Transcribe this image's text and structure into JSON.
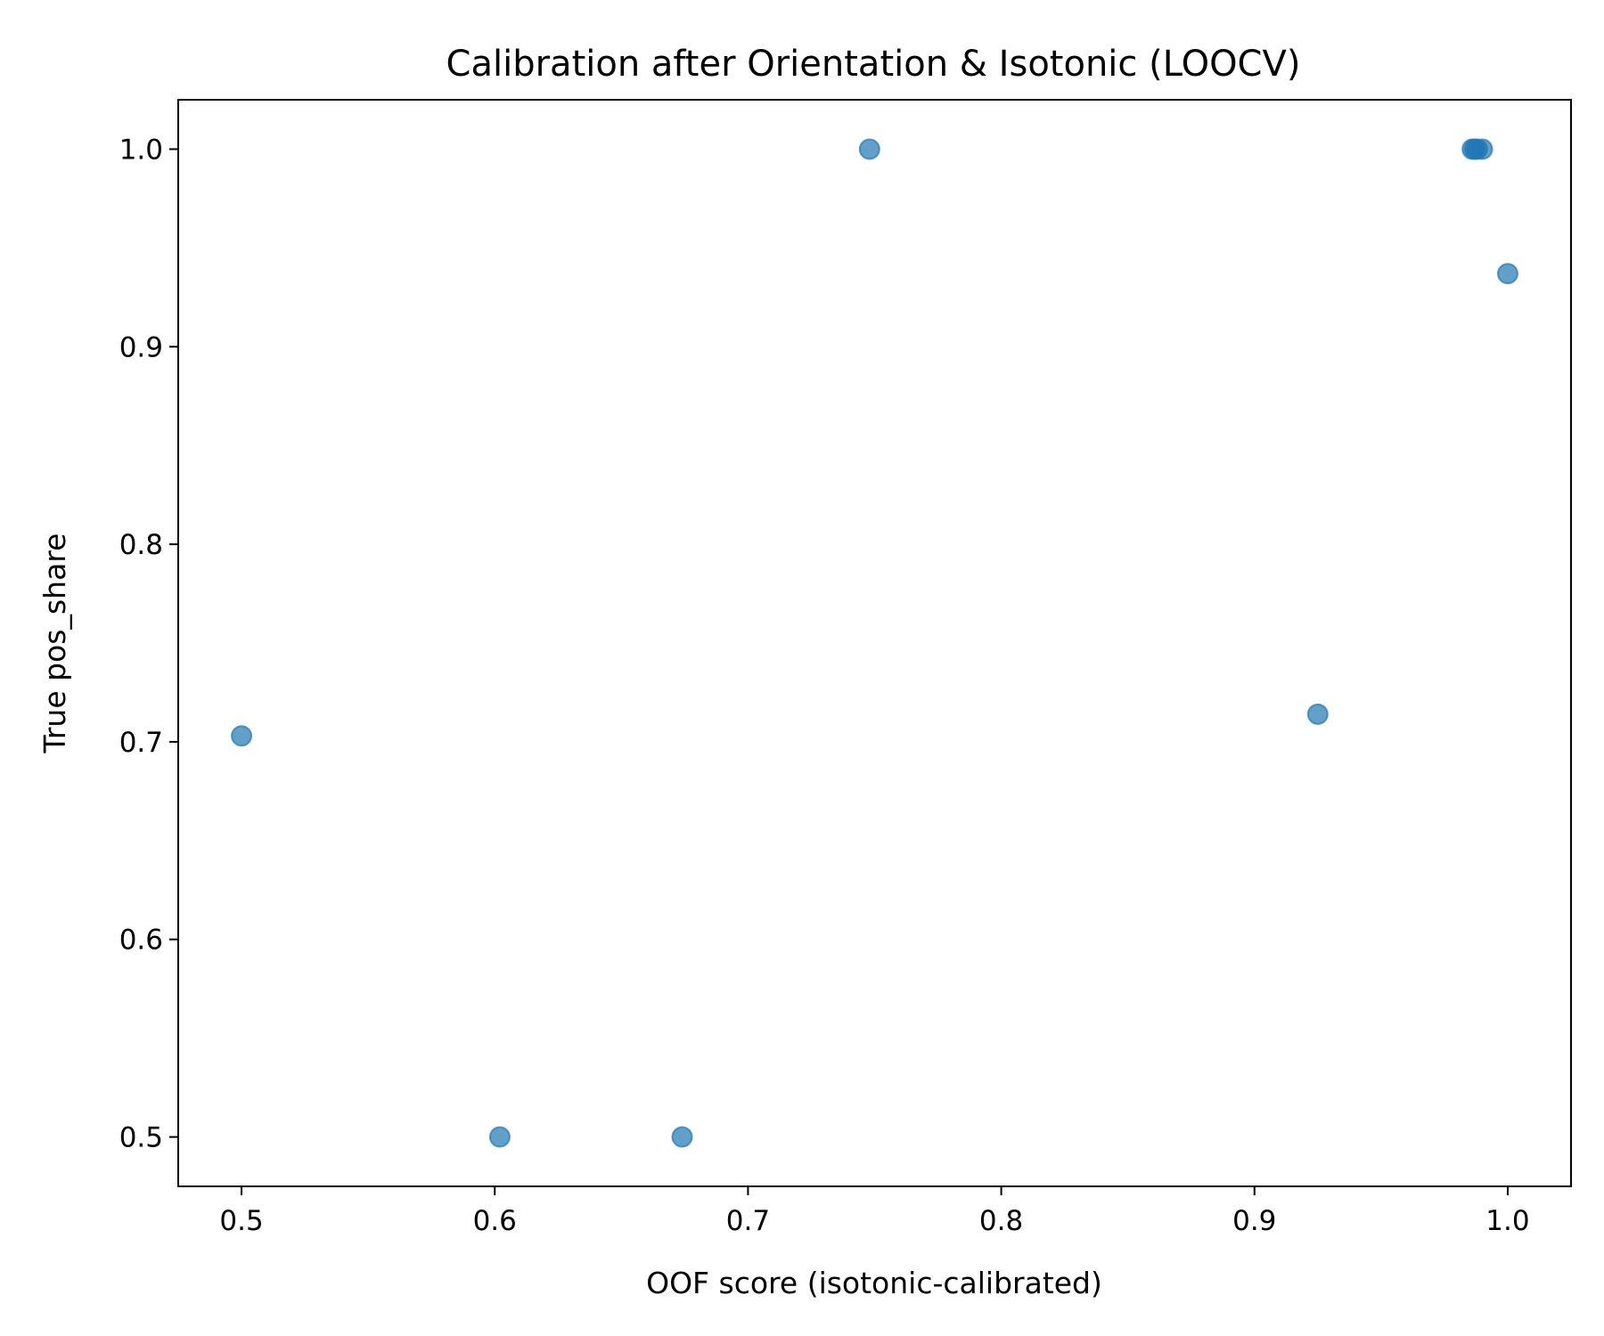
{
  "chart_data": {
    "type": "scatter",
    "title": "Calibration after Orientation & Isotonic (LOOCV)",
    "xlabel": "OOF score (isotonic-calibrated)",
    "ylabel": "True pos_share",
    "xlim": [
      0.475,
      1.025
    ],
    "ylim": [
      0.475,
      1.025
    ],
    "xticks": [
      0.5,
      0.6,
      0.7,
      0.8,
      0.9,
      1.0
    ],
    "yticks": [
      0.5,
      0.6,
      0.7,
      0.8,
      0.9,
      1.0
    ],
    "xtick_labels": [
      "0.5",
      "0.6",
      "0.7",
      "0.8",
      "0.9",
      "1.0"
    ],
    "ytick_labels": [
      "0.5",
      "0.6",
      "0.7",
      "0.8",
      "0.9",
      "1.0"
    ],
    "grid": false,
    "marker_color": "#1f77b4",
    "marker_alpha": 0.7,
    "points": [
      {
        "x": 0.5,
        "y": 0.703
      },
      {
        "x": 0.602,
        "y": 0.5
      },
      {
        "x": 0.674,
        "y": 0.5
      },
      {
        "x": 0.748,
        "y": 1.0
      },
      {
        "x": 0.925,
        "y": 0.714
      },
      {
        "x": 0.986,
        "y": 1.0
      },
      {
        "x": 0.987,
        "y": 1.0
      },
      {
        "x": 0.988,
        "y": 1.0
      },
      {
        "x": 0.99,
        "y": 1.0
      },
      {
        "x": 1.0,
        "y": 0.937
      }
    ]
  }
}
